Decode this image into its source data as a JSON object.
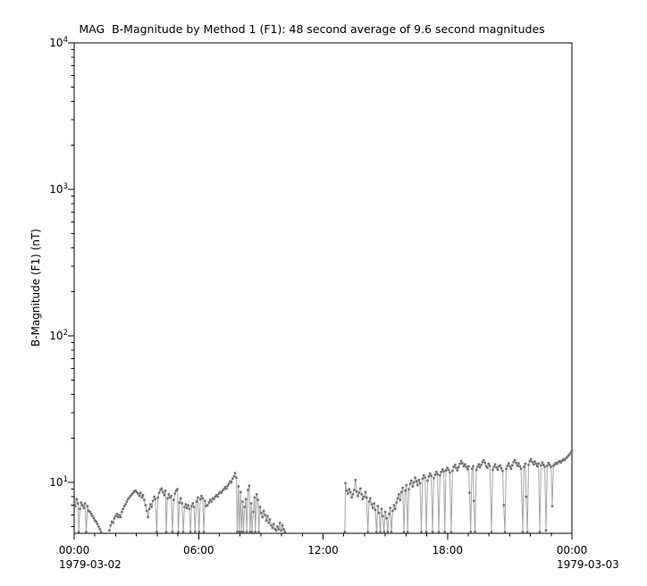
{
  "chart_data": {
    "type": "line",
    "title": "MAG  B-Magnitude by Method 1 (F1): 48 second average of 9.6 second magnitudes",
    "ylabel": "B-Magnitude (F1) (nT)",
    "y_scale": "log",
    "ylim": [
      4.5,
      10000
    ],
    "y_major_tick_exponents": [
      1,
      2,
      3,
      4
    ],
    "y_major_tick_values": [
      10,
      100,
      1000,
      10000
    ],
    "y_minor_tick_mantissas": [
      2,
      3,
      4,
      5,
      6,
      7,
      8,
      9
    ],
    "xlim_hours": [
      0,
      24
    ],
    "x_major_tick_hours": [
      0,
      6,
      12,
      18,
      24
    ],
    "x_major_tick_labels": [
      "00:00",
      "06:00",
      "12:00",
      "18:00",
      "00:00"
    ],
    "x_minor_tick_interval_hours": 1,
    "x_start_date": "1979-03-02",
    "x_end_date": "1979-03-03",
    "grid": false,
    "legend": false,
    "marker": "square",
    "colors": {
      "marker": "#6e6e6e",
      "line": "#a6a6a6",
      "frame": "#000000",
      "background": "#ffffff",
      "text": "#000000"
    },
    "segments": [
      [
        [
          0.0,
          7.4
        ],
        [
          0.06,
          6.9
        ],
        [
          0.12,
          7.7
        ],
        [
          0.18,
          7.2
        ],
        [
          0.22,
          4.6
        ],
        [
          0.28,
          6.6
        ],
        [
          0.34,
          7.3
        ],
        [
          0.4,
          7.0
        ],
        [
          0.46,
          6.7
        ],
        [
          0.52,
          7.2
        ],
        [
          0.58,
          4.6
        ],
        [
          0.64,
          6.9
        ],
        [
          0.7,
          6.4
        ],
        [
          0.76,
          6.3
        ],
        [
          0.82,
          6.1
        ],
        [
          0.88,
          5.9
        ],
        [
          0.94,
          5.7
        ],
        [
          1.0,
          5.5
        ],
        [
          1.06,
          5.4
        ],
        [
          1.12,
          5.2
        ],
        [
          1.18,
          5.0
        ],
        [
          1.24,
          4.8
        ],
        [
          1.3,
          4.6
        ]
      ],
      [
        [
          1.7,
          4.7
        ],
        [
          1.76,
          5.1
        ],
        [
          1.82,
          5.4
        ],
        [
          1.88,
          5.3
        ],
        [
          1.94,
          5.7
        ],
        [
          2.0,
          5.9
        ],
        [
          2.06,
          6.1
        ],
        [
          2.12,
          5.8
        ],
        [
          2.18,
          6.0
        ],
        [
          2.24,
          5.8
        ],
        [
          2.3,
          6.3
        ],
        [
          2.36,
          6.6
        ],
        [
          2.42,
          6.9
        ],
        [
          2.48,
          7.1
        ],
        [
          2.54,
          7.4
        ],
        [
          2.6,
          7.7
        ],
        [
          2.66,
          7.9
        ],
        [
          2.72,
          8.1
        ],
        [
          2.78,
          8.3
        ],
        [
          2.84,
          8.5
        ],
        [
          2.9,
          8.7
        ],
        [
          2.96,
          8.8
        ],
        [
          3.02,
          8.6
        ],
        [
          3.08,
          8.4
        ],
        [
          3.14,
          8.1
        ],
        [
          3.2,
          8.5
        ],
        [
          3.26,
          7.9
        ],
        [
          3.32,
          8.2
        ],
        [
          3.38,
          7.6
        ],
        [
          3.44,
          7.0
        ],
        [
          3.5,
          6.4
        ],
        [
          3.56,
          5.8
        ],
        [
          3.62,
          6.6
        ],
        [
          3.68,
          7.1
        ],
        [
          3.74,
          6.8
        ],
        [
          3.8,
          7.5
        ],
        [
          3.86,
          8.0
        ],
        [
          3.92,
          7.7
        ],
        [
          3.98,
          4.6
        ],
        [
          4.04,
          7.9
        ],
        [
          4.1,
          8.5
        ],
        [
          4.16,
          8.9
        ],
        [
          4.22,
          9.1
        ],
        [
          4.28,
          8.6
        ],
        [
          4.34,
          8.2
        ],
        [
          4.4,
          8.8
        ],
        [
          4.44,
          4.6
        ],
        [
          4.5,
          7.8
        ],
        [
          4.56,
          8.3
        ],
        [
          4.62,
          7.9
        ],
        [
          4.68,
          8.1
        ],
        [
          4.74,
          4.6
        ],
        [
          4.8,
          7.6
        ],
        [
          4.86,
          8.4
        ],
        [
          4.92,
          8.8
        ],
        [
          4.98,
          9.0
        ],
        [
          5.02,
          4.6
        ],
        [
          5.08,
          7.3
        ],
        [
          5.14,
          7.8
        ],
        [
          5.2,
          7.2
        ],
        [
          5.26,
          4.6
        ],
        [
          5.32,
          6.8
        ],
        [
          5.38,
          7.1
        ],
        [
          5.44,
          6.7
        ],
        [
          5.5,
          7.0
        ],
        [
          5.56,
          6.6
        ],
        [
          5.61,
          4.6
        ],
        [
          5.66,
          6.9
        ],
        [
          5.72,
          7.2
        ],
        [
          5.78,
          6.8
        ],
        [
          5.83,
          4.6
        ],
        [
          5.9,
          7.4
        ],
        [
          5.96,
          7.9
        ],
        [
          6.02,
          4.6
        ],
        [
          6.08,
          7.7
        ],
        [
          6.14,
          8.1
        ],
        [
          6.2,
          7.8
        ],
        [
          6.25,
          4.6
        ],
        [
          6.31,
          7.5
        ],
        [
          6.37,
          6.9
        ],
        [
          6.43,
          7.0
        ],
        [
          6.5,
          7.3
        ],
        [
          6.56,
          7.6
        ],
        [
          6.62,
          7.4
        ],
        [
          6.68,
          7.8
        ],
        [
          6.74,
          7.7
        ],
        [
          6.8,
          8.0
        ],
        [
          6.86,
          8.2
        ],
        [
          6.92,
          8.0
        ],
        [
          6.98,
          8.4
        ],
        [
          7.04,
          8.6
        ],
        [
          7.1,
          8.5
        ],
        [
          7.16,
          8.8
        ],
        [
          7.22,
          9.0
        ],
        [
          7.28,
          9.3
        ],
        [
          7.34,
          9.1
        ],
        [
          7.4,
          9.5
        ],
        [
          7.46,
          9.8
        ],
        [
          7.52,
          10.2
        ],
        [
          7.58,
          10.0
        ],
        [
          7.64,
          10.6
        ],
        [
          7.7,
          11.0
        ],
        [
          7.76,
          11.6
        ],
        [
          7.82,
          10.8
        ],
        [
          7.86,
          4.6
        ],
        [
          7.92,
          9.4
        ],
        [
          7.96,
          4.6
        ],
        [
          8.02,
          8.6
        ],
        [
          8.06,
          4.6
        ],
        [
          8.12,
          7.4
        ],
        [
          8.16,
          4.6
        ],
        [
          8.22,
          6.8
        ],
        [
          8.28,
          7.7
        ],
        [
          8.32,
          4.6
        ],
        [
          8.38,
          8.9
        ],
        [
          8.44,
          9.5
        ],
        [
          8.48,
          4.6
        ],
        [
          8.54,
          7.2
        ],
        [
          8.58,
          4.6
        ],
        [
          8.64,
          6.3
        ],
        [
          8.7,
          7.9
        ],
        [
          8.74,
          4.6
        ],
        [
          8.8,
          8.3
        ],
        [
          8.86,
          7.6
        ],
        [
          8.9,
          4.6
        ],
        [
          8.96,
          6.8
        ],
        [
          9.02,
          6.2
        ],
        [
          9.08,
          5.8
        ],
        [
          9.14,
          6.4
        ],
        [
          9.2,
          6.0
        ],
        [
          9.26,
          5.5
        ],
        [
          9.32,
          5.9
        ],
        [
          9.38,
          5.3
        ],
        [
          9.44,
          5.6
        ],
        [
          9.5,
          5.1
        ],
        [
          9.56,
          4.9
        ],
        [
          9.62,
          5.2
        ],
        [
          9.68,
          4.8
        ],
        [
          9.74,
          4.7
        ],
        [
          9.8,
          5.0
        ],
        [
          9.86,
          4.8
        ],
        [
          9.92,
          5.3
        ],
        [
          9.98,
          4.7
        ],
        [
          10.04,
          5.1
        ],
        [
          10.1,
          4.8
        ],
        [
          10.16,
          4.6
        ]
      ],
      [
        [
          13.05,
          4.6
        ],
        [
          13.08,
          9.9
        ],
        [
          13.14,
          8.8
        ],
        [
          13.2,
          8.4
        ],
        [
          13.26,
          9.0
        ],
        [
          13.32,
          8.6
        ],
        [
          13.38,
          7.9
        ],
        [
          13.44,
          8.3
        ],
        [
          13.5,
          8.9
        ],
        [
          13.56,
          10.4
        ],
        [
          13.62,
          8.7
        ],
        [
          13.68,
          8.1
        ],
        [
          13.74,
          8.5
        ],
        [
          13.8,
          9.1
        ],
        [
          13.86,
          8.3
        ],
        [
          13.92,
          7.7
        ],
        [
          13.98,
          8.0
        ],
        [
          14.04,
          8.6
        ],
        [
          14.1,
          7.9
        ],
        [
          14.16,
          4.6
        ],
        [
          14.22,
          7.4
        ],
        [
          14.28,
          7.8
        ],
        [
          14.34,
          7.1
        ],
        [
          14.4,
          6.7
        ],
        [
          14.46,
          7.2
        ],
        [
          14.52,
          6.5
        ],
        [
          14.58,
          4.6
        ],
        [
          14.64,
          6.9
        ],
        [
          14.7,
          6.2
        ],
        [
          14.76,
          4.6
        ],
        [
          14.82,
          6.6
        ],
        [
          14.88,
          5.9
        ],
        [
          14.94,
          4.6
        ],
        [
          15.0,
          6.3
        ],
        [
          15.06,
          5.7
        ],
        [
          15.12,
          4.6
        ],
        [
          15.18,
          6.1
        ],
        [
          15.24,
          6.7
        ],
        [
          15.3,
          4.6
        ],
        [
          15.36,
          6.4
        ],
        [
          15.42,
          7.0
        ],
        [
          15.48,
          6.6
        ],
        [
          15.54,
          7.3
        ],
        [
          15.6,
          7.8
        ],
        [
          15.66,
          8.3
        ],
        [
          15.72,
          7.6
        ],
        [
          15.78,
          8.6
        ],
        [
          15.84,
          9.2
        ],
        [
          15.9,
          4.6
        ],
        [
          15.96,
          8.8
        ],
        [
          16.02,
          9.6
        ],
        [
          16.08,
          4.6
        ],
        [
          16.14,
          9.0
        ],
        [
          16.2,
          9.8
        ],
        [
          16.26,
          10.3
        ],
        [
          16.32,
          9.4
        ],
        [
          16.38,
          10.0
        ],
        [
          16.44,
          10.8
        ],
        [
          16.5,
          10.2
        ],
        [
          16.56,
          9.6
        ],
        [
          16.62,
          10.4
        ],
        [
          16.68,
          9.9
        ],
        [
          16.74,
          4.6
        ],
        [
          16.8,
          10.6
        ],
        [
          16.86,
          11.2
        ],
        [
          16.92,
          10.8
        ],
        [
          16.98,
          4.6
        ],
        [
          17.04,
          10.3
        ],
        [
          17.1,
          11.0
        ],
        [
          17.16,
          11.5
        ],
        [
          17.22,
          11.1
        ],
        [
          17.28,
          4.6
        ],
        [
          17.34,
          10.7
        ],
        [
          17.4,
          11.3
        ],
        [
          17.46,
          11.8
        ],
        [
          17.52,
          11.4
        ],
        [
          17.58,
          4.6
        ],
        [
          17.64,
          11.2
        ],
        [
          17.7,
          11.8
        ],
        [
          17.76,
          12.3
        ],
        [
          17.82,
          11.9
        ],
        [
          17.87,
          4.6
        ],
        [
          17.93,
          12.1
        ],
        [
          17.99,
          12.6
        ],
        [
          18.05,
          12.2
        ],
        [
          18.11,
          11.7
        ],
        [
          18.18,
          4.6
        ],
        [
          18.24,
          12.0
        ],
        [
          18.3,
          12.8
        ],
        [
          18.36,
          13.2
        ],
        [
          18.42,
          12.6
        ],
        [
          18.48,
          12.1
        ],
        [
          18.54,
          12.7
        ],
        [
          18.6,
          13.4
        ],
        [
          18.66,
          14.0
        ],
        [
          18.72,
          13.5
        ],
        [
          18.78,
          12.9
        ],
        [
          18.84,
          13.3
        ],
        [
          18.9,
          12.8
        ],
        [
          18.96,
          12.3
        ],
        [
          19.02,
          12.9
        ],
        [
          19.06,
          8.5
        ],
        [
          19.12,
          4.6
        ],
        [
          19.18,
          12.4
        ],
        [
          19.24,
          12.9
        ],
        [
          19.27,
          7.5
        ],
        [
          19.33,
          4.6
        ],
        [
          19.39,
          12.2
        ],
        [
          19.45,
          12.8
        ],
        [
          19.51,
          13.3
        ],
        [
          19.57,
          12.7
        ],
        [
          19.63,
          13.2
        ],
        [
          19.69,
          13.8
        ],
        [
          19.75,
          14.2
        ],
        [
          19.81,
          13.6
        ],
        [
          19.86,
          12.9
        ],
        [
          19.92,
          12.6
        ],
        [
          19.98,
          13.4
        ],
        [
          20.04,
          13.0
        ],
        [
          20.12,
          4.6
        ],
        [
          20.18,
          12.2
        ],
        [
          20.24,
          12.8
        ],
        [
          20.3,
          13.3
        ],
        [
          20.36,
          12.7
        ],
        [
          20.42,
          12.2
        ],
        [
          20.48,
          12.9
        ],
        [
          20.54,
          13.1
        ],
        [
          20.6,
          12.5
        ],
        [
          20.66,
          12.0
        ],
        [
          20.71,
          7.0
        ],
        [
          20.77,
          4.6
        ],
        [
          20.83,
          12.4
        ],
        [
          20.89,
          13.0
        ],
        [
          20.95,
          13.5
        ],
        [
          21.01,
          12.9
        ],
        [
          21.07,
          12.4
        ],
        [
          21.13,
          13.1
        ],
        [
          21.19,
          13.8
        ],
        [
          21.25,
          14.2
        ],
        [
          21.31,
          13.6
        ],
        [
          21.37,
          13.0
        ],
        [
          21.43,
          13.5
        ],
        [
          21.49,
          12.9
        ],
        [
          21.55,
          12.4
        ],
        [
          21.63,
          4.6
        ],
        [
          21.69,
          12.8
        ],
        [
          21.75,
          13.4
        ],
        [
          21.79,
          8.0
        ],
        [
          21.85,
          4.6
        ],
        [
          21.91,
          13.2
        ],
        [
          21.97,
          14.0
        ],
        [
          22.03,
          14.4
        ],
        [
          22.09,
          13.8
        ],
        [
          22.15,
          13.3
        ],
        [
          22.21,
          13.9
        ],
        [
          22.27,
          13.4
        ],
        [
          22.33,
          12.9
        ],
        [
          22.39,
          13.5
        ],
        [
          22.45,
          4.6
        ],
        [
          22.51,
          13.1
        ],
        [
          22.57,
          13.7
        ],
        [
          22.63,
          13.2
        ],
        [
          22.69,
          12.8
        ],
        [
          22.75,
          4.7
        ],
        [
          22.81,
          13.0
        ],
        [
          22.87,
          13.6
        ],
        [
          22.93,
          13.2
        ],
        [
          22.99,
          12.8
        ],
        [
          23.05,
          6.9
        ],
        [
          23.11,
          13.0
        ],
        [
          23.17,
          13.3
        ],
        [
          23.23,
          13.6
        ],
        [
          23.29,
          13.4
        ],
        [
          23.35,
          13.8
        ],
        [
          23.41,
          14.0
        ],
        [
          23.47,
          13.7
        ],
        [
          23.53,
          14.1
        ],
        [
          23.59,
          14.4
        ],
        [
          23.65,
          14.2
        ],
        [
          23.71,
          14.6
        ],
        [
          23.77,
          14.9
        ],
        [
          23.83,
          15.2
        ],
        [
          23.89,
          15.6
        ],
        [
          23.95,
          16.1
        ],
        [
          24.0,
          16.5
        ]
      ]
    ]
  }
}
